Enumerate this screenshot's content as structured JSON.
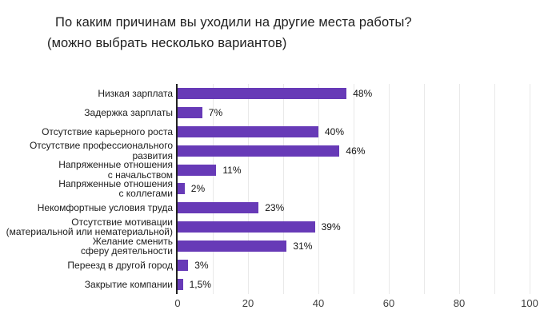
{
  "chart_data": {
    "type": "bar",
    "orientation": "horizontal",
    "title": "По каким причинам вы уходили на другие места работы?",
    "subtitle": "(можно выбрать несколько вариантов)",
    "categories": [
      "Низкая зарплата",
      "Задержка зарплаты",
      "Отсутствие карьерного роста",
      "Отсутствие профессионального\nразвития",
      "Напряженные отношения\nс начальством",
      "Напряженные отношения\nс коллегами",
      "Некомфортные условия труда",
      "Отсутствие мотивации\n(материальной или нематериальной)",
      "Желание сменить\nсферу деятельности",
      "Переезд в другой город",
      "Закрытие компании"
    ],
    "values": [
      48,
      7,
      40,
      46,
      11,
      2,
      23,
      39,
      31,
      3,
      1.5
    ],
    "value_labels": [
      "48%",
      "7%",
      "40%",
      "46%",
      "11%",
      "2%",
      "23%",
      "39%",
      "31%",
      "3%",
      "1,5%"
    ],
    "xlabel": "",
    "ylabel": "",
    "xlim": [
      0,
      100
    ],
    "xticks": [
      0,
      20,
      40,
      60,
      80,
      100
    ],
    "gridline_step": 10,
    "grid": true,
    "legend": false,
    "colors": {
      "bar": "#673ab7",
      "axis_line": "#212121",
      "gridline": "#e9e9e9",
      "title_text": "#212121",
      "label_text": "#1c1c1c",
      "value_text": "#111111",
      "tick_text": "#3f3f3f",
      "background": "#ffffff"
    }
  }
}
